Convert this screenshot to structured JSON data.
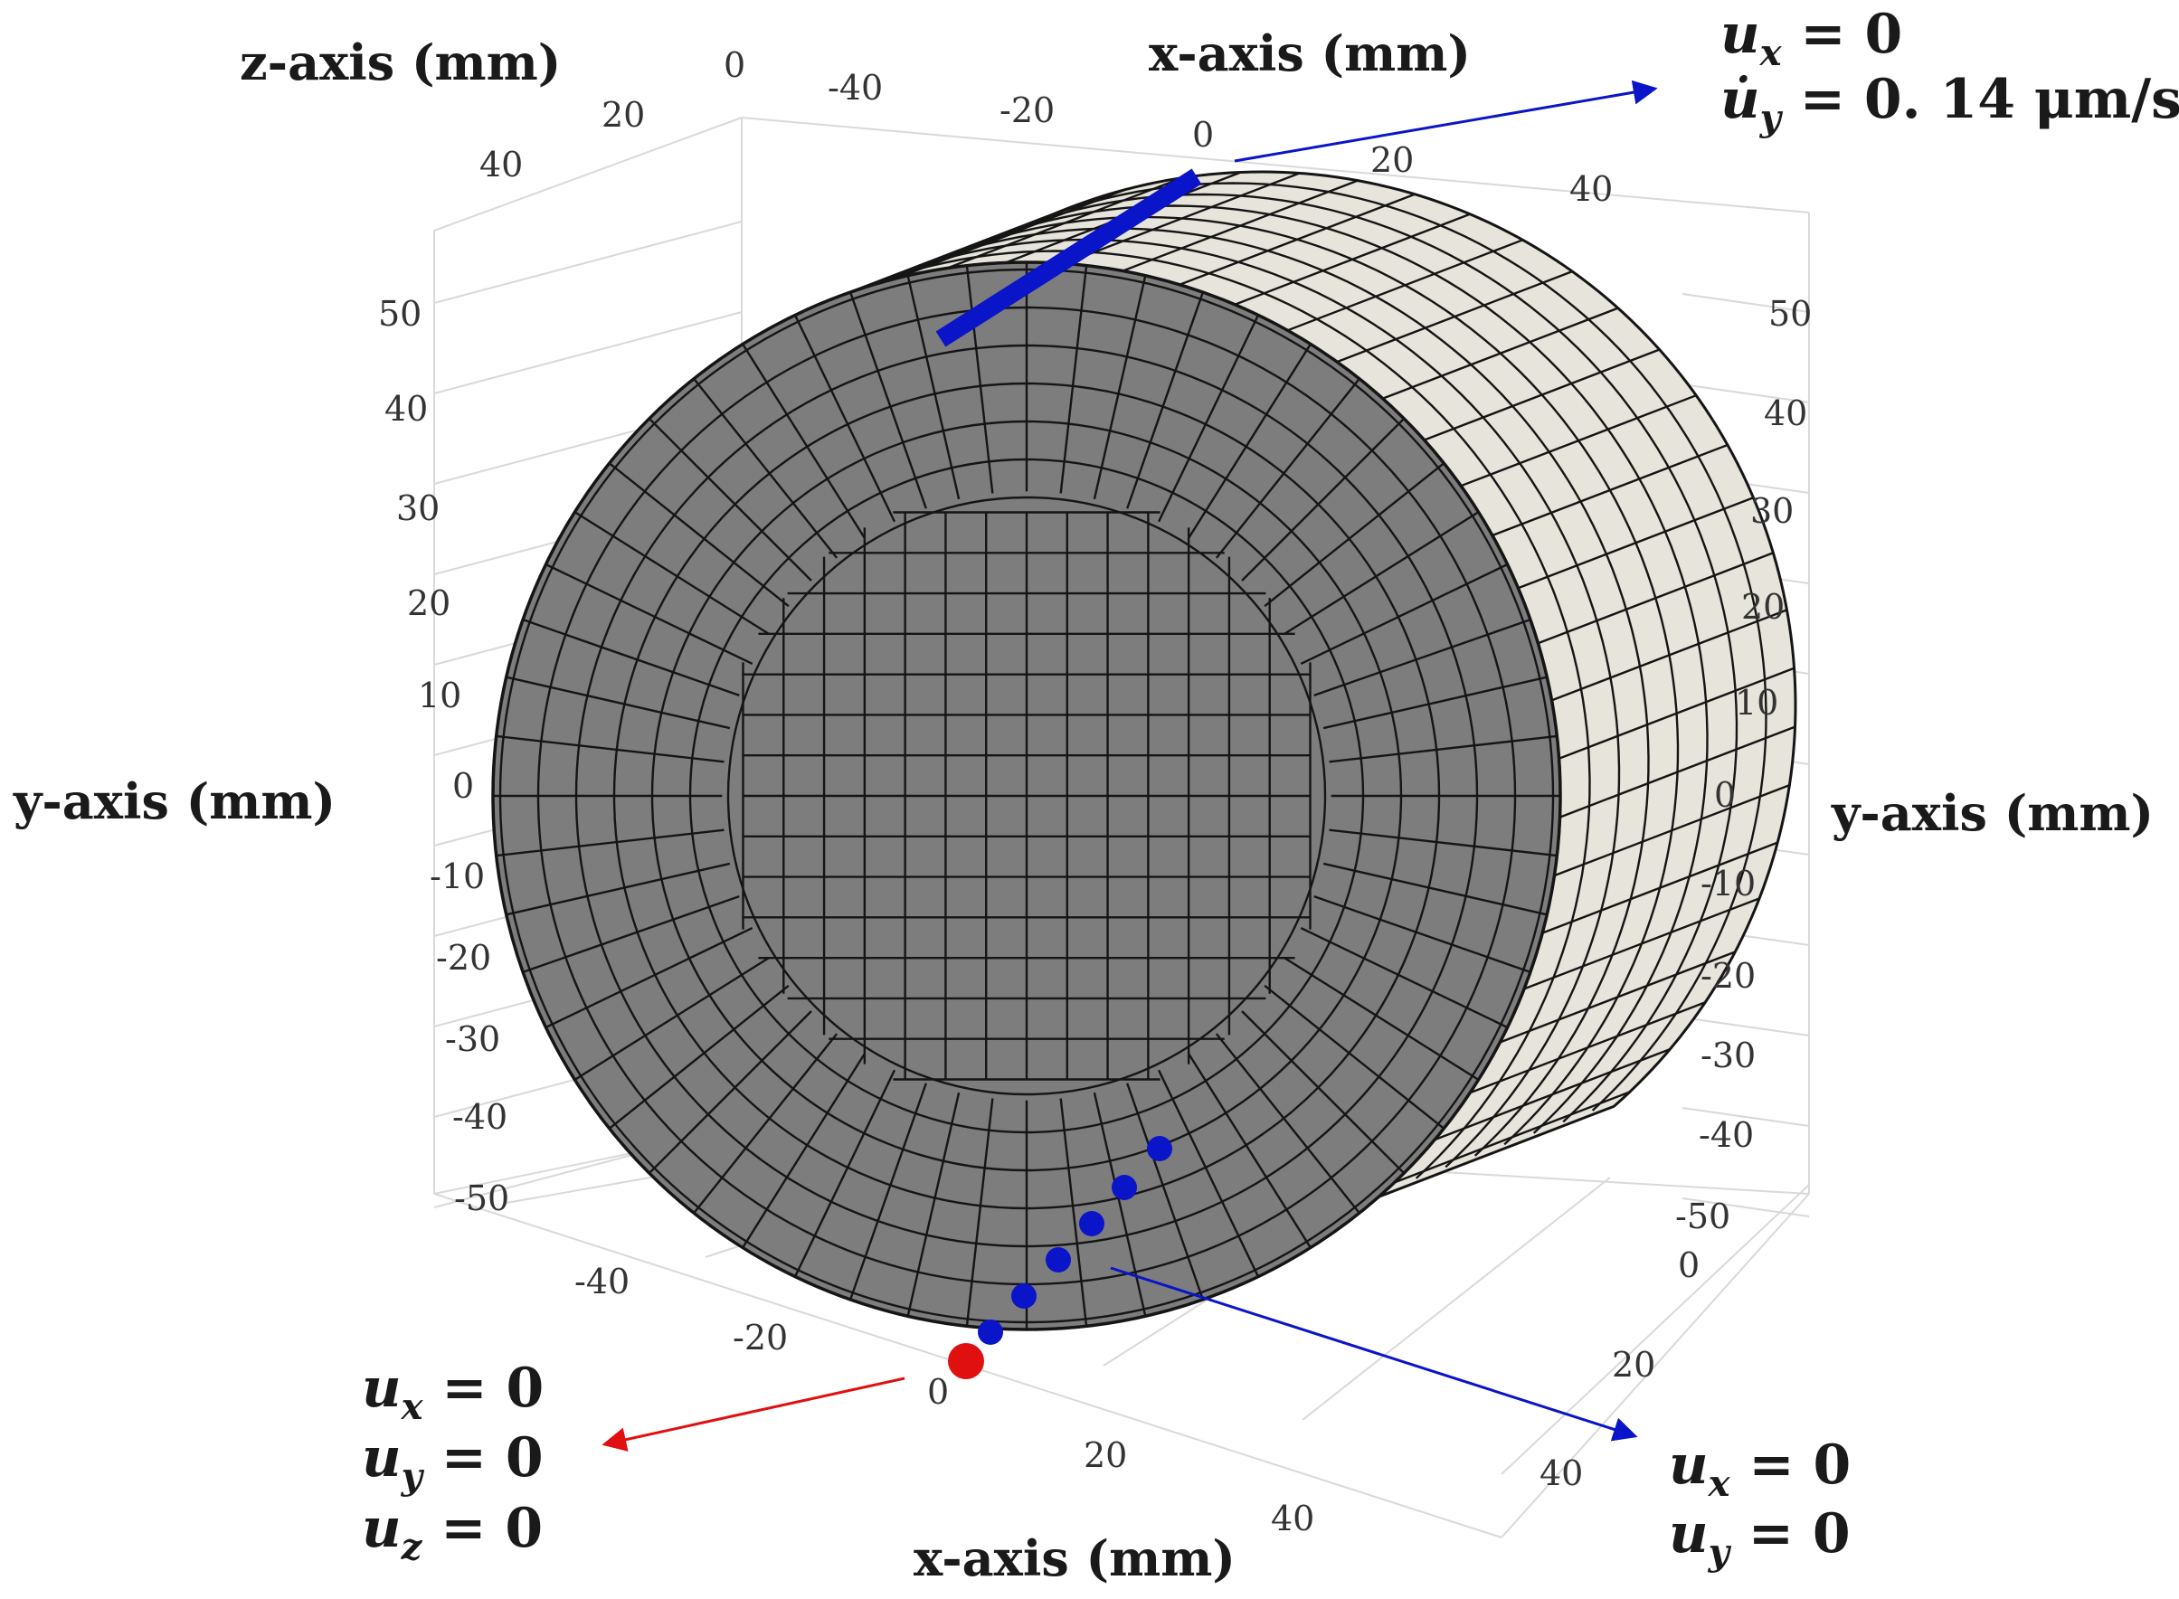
{
  "axes": {
    "z_title": "z-axis (mm)",
    "x_title_top": "x-axis (mm)",
    "x_title_bottom": "x-axis (mm)",
    "y_title_left": "y-axis (mm)",
    "y_title_right": "y-axis (mm)",
    "z_ticks": [
      "40",
      "20",
      "0"
    ],
    "x_ticks_top": [
      "-40",
      "-20",
      "0",
      "20",
      "40"
    ],
    "y_ticks_left": [
      "50",
      "40",
      "30",
      "20",
      "10",
      "0",
      "-10",
      "-20",
      "-30",
      "-40",
      "-50"
    ],
    "y_ticks_right": [
      "50",
      "40",
      "30",
      "20",
      "10",
      "0",
      "-10",
      "-20",
      "-30",
      "-40",
      "-50"
    ],
    "x_ticks_bottom": [
      "-40",
      "-20",
      "0",
      "20",
      "40"
    ],
    "z_ticks_bottom_right": [
      "0",
      "20",
      "40"
    ]
  },
  "boundary_conditions": {
    "top_line": {
      "line1": [
        "u",
        "x",
        " = 0"
      ],
      "line2": [
        "u̇",
        "y",
        " = 0. 14 μm/s"
      ]
    },
    "bottom_point": {
      "line1": [
        "u",
        "x",
        " = 0"
      ],
      "line2": [
        "u",
        "y",
        " = 0"
      ],
      "line3": [
        "u",
        "z",
        " = 0"
      ]
    },
    "bottom_nodes": {
      "line1": [
        "u",
        "x",
        " = 0"
      ],
      "line2": [
        "u",
        "y",
        " = 0"
      ]
    }
  },
  "colors": {
    "mesh_front": "#7d7d7d",
    "mesh_side": "#e7e4db",
    "mesh_line": "#151515",
    "grid": "#d9d9d9",
    "bc_blue": "#0a14c8",
    "bc_red": "#e01010"
  }
}
